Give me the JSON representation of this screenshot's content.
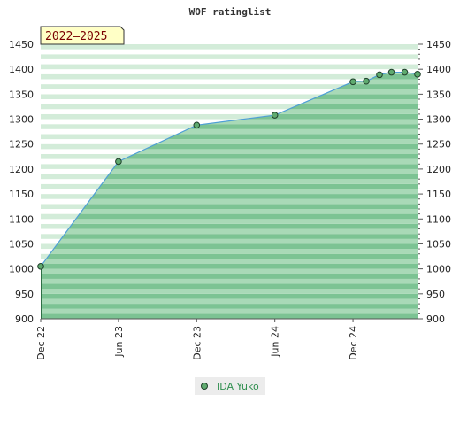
{
  "chart_data": {
    "type": "area",
    "title": "WOF ratinglist",
    "badge": "2022–2025",
    "x_tick_labels": [
      "Dec 22",
      "Jun 23",
      "Dec 23",
      "Jun 24",
      "Dec 24"
    ],
    "x_ticks": [
      "2022-12-01",
      "2023-06-01",
      "2023-12-01",
      "2024-06-01",
      "2024-12-01"
    ],
    "xlim": [
      "2022-12-01",
      "2025-05-01"
    ],
    "ylim": [
      900,
      1450
    ],
    "y_ticks": [
      900,
      950,
      1000,
      1050,
      1100,
      1150,
      1200,
      1250,
      1300,
      1350,
      1400,
      1450
    ],
    "y_tick_labels": [
      "900",
      "950",
      "1000",
      "1050",
      "1100",
      "1150",
      "1200",
      "1250",
      "1300",
      "1350",
      "1400",
      "1450"
    ],
    "right_axis": true,
    "legend_position": "bottom",
    "series": [
      {
        "name": "IDA Yuko",
        "x": [
          "2022-12-01",
          "2023-06-01",
          "2023-12-01",
          "2024-06-01",
          "2024-12-01",
          "2025-01-01",
          "2025-02-01",
          "2025-03-01",
          "2025-04-01",
          "2025-05-01"
        ],
        "y": [
          1005,
          1215,
          1288,
          1308,
          1375,
          1376,
          1389,
          1394,
          1394,
          1390
        ]
      }
    ],
    "colors": {
      "line": "#4f9fd6",
      "marker": "#5faa6f",
      "marker_edge": "#1f3f2a",
      "area_dark": "#7cc393",
      "area_light": "#a9d9b7",
      "band_dark": "#d3ecd9",
      "band_light": "#ffffff",
      "badge_bg": "#ffffc6"
    }
  }
}
